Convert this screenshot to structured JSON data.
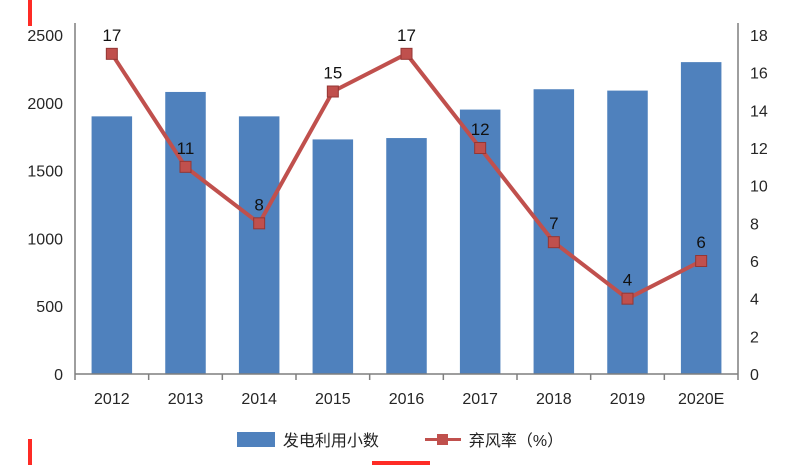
{
  "chart_data": {
    "type": "combo",
    "title": "",
    "categories": [
      "2012",
      "2013",
      "2014",
      "2015",
      "2016",
      "2017",
      "2018",
      "2019",
      "2020E"
    ],
    "series": [
      {
        "name": "发电利用小数",
        "type": "bar",
        "axis": "left",
        "color": "#4f81bd",
        "values": [
          1900,
          2080,
          1900,
          1730,
          1740,
          1950,
          2100,
          2090,
          2300
        ]
      },
      {
        "name": "弃风率（%）",
        "type": "line",
        "axis": "right",
        "color": "#c0504d",
        "marker": "square",
        "values": [
          17,
          11,
          8,
          15,
          17,
          12,
          7,
          4,
          6
        ],
        "data_labels": [
          "17",
          "11",
          "8",
          "15",
          "17",
          "12",
          "7",
          "4",
          "6"
        ]
      }
    ],
    "left_axis": {
      "min": 0,
      "max": 2500,
      "step": 500
    },
    "right_axis": {
      "min": 0,
      "max": 18,
      "step": 2
    },
    "legend_position": "bottom",
    "grid": false,
    "layout": {
      "axis_color": "#7f7f7f",
      "text_color": "#262626",
      "label_color": "#111111",
      "background": "#ffffff"
    }
  },
  "decorations": {
    "frame_color": "#fe2b25"
  }
}
